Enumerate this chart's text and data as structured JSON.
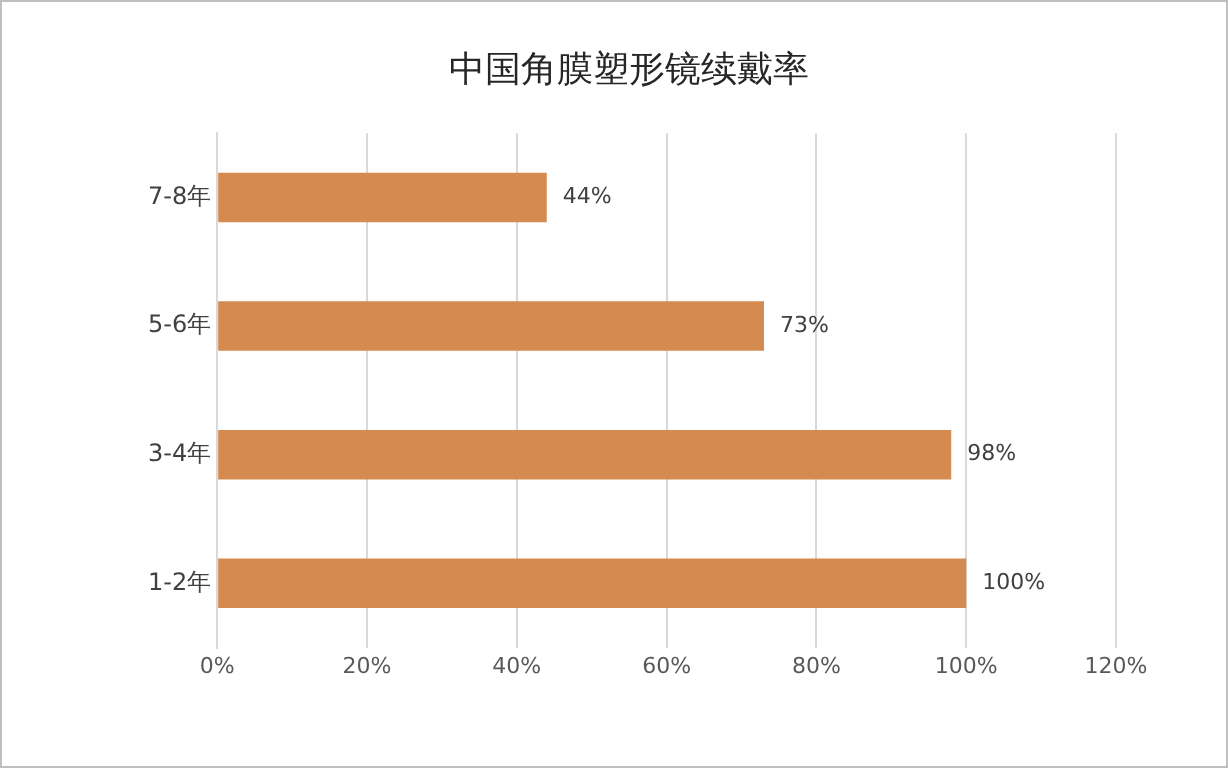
{
  "chart_data": {
    "type": "bar",
    "orientation": "horizontal",
    "title": "中国角膜塑形镜续戴率",
    "categories": [
      "7-8年",
      "5-6年",
      "3-4年",
      "1-2年"
    ],
    "values": [
      44,
      73,
      98,
      100
    ],
    "value_labels": [
      "44%",
      "73%",
      "98%",
      "100%"
    ],
    "color": "#d58b4f",
    "xlim": [
      0,
      120
    ],
    "xticks": [
      {
        "value": 0,
        "label": "0%"
      },
      {
        "value": 20,
        "label": "20%"
      },
      {
        "value": 40,
        "label": "40%"
      },
      {
        "value": 60,
        "label": "60%"
      },
      {
        "value": 80,
        "label": "80%"
      },
      {
        "value": 100,
        "label": "100%"
      },
      {
        "value": 120,
        "label": "120%"
      }
    ],
    "grid": "x"
  }
}
